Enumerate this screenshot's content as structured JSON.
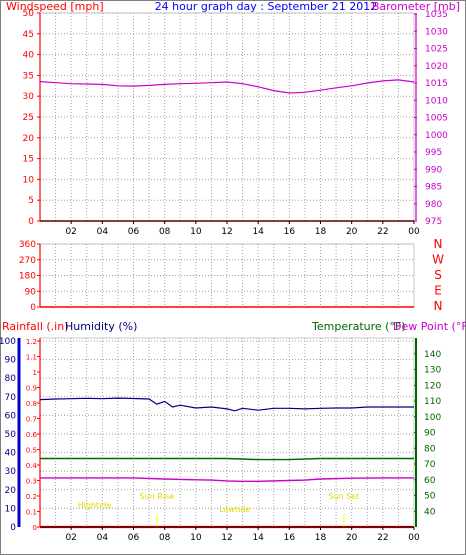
{
  "chart_data": [
    {
      "type": "line",
      "title": "24 hour graph day : September 21 2012",
      "ylabel": "Windspeed [mph]",
      "ylabel_right": "Barometer [mb]",
      "x_ticks": [
        "02",
        "04",
        "06",
        "08",
        "10",
        "12",
        "14",
        "16",
        "18",
        "20",
        "22",
        "00"
      ],
      "ylim": [
        0,
        50
      ],
      "y_ticks": [
        0,
        5,
        10,
        15,
        20,
        25,
        30,
        35,
        40,
        45,
        50
      ],
      "ylim_right": [
        975,
        1035
      ],
      "y_ticks_right": [
        975,
        980,
        985,
        990,
        995,
        1000,
        1005,
        1010,
        1015,
        1020,
        1025,
        1030,
        1035
      ],
      "grid": true,
      "series": [
        {
          "name": "Barometer [mb]",
          "color": "#cc00cc",
          "axis": "right",
          "points": [
            [
              0,
              1015.4
            ],
            [
              1,
              1015.1
            ],
            [
              2,
              1014.8
            ],
            [
              3,
              1014.7
            ],
            [
              4,
              1014.6
            ],
            [
              5,
              1014.2
            ],
            [
              6,
              1014.1
            ],
            [
              7,
              1014.3
            ],
            [
              8,
              1014.6
            ],
            [
              9,
              1014.8
            ],
            [
              10,
              1014.9
            ],
            [
              11,
              1015.1
            ],
            [
              12,
              1015.3
            ],
            [
              13,
              1014.8
            ],
            [
              14,
              1013.9
            ],
            [
              15,
              1012.8
            ],
            [
              16,
              1012.1
            ],
            [
              17,
              1012.3
            ],
            [
              18,
              1012.9
            ],
            [
              19,
              1013.6
            ],
            [
              20,
              1014.2
            ],
            [
              21,
              1015.0
            ],
            [
              22,
              1015.6
            ],
            [
              23,
              1015.9
            ],
            [
              24,
              1015.3
            ]
          ]
        },
        {
          "name": "Windspeed [mph]",
          "color": "#ff0000",
          "axis": "left",
          "points": [
            [
              0,
              0
            ],
            [
              24,
              0
            ]
          ]
        }
      ]
    },
    {
      "type": "line",
      "ylim": [
        0,
        360
      ],
      "y_ticks": [
        0,
        90,
        180,
        270,
        360
      ],
      "direction_labels": [
        "N",
        "W",
        "S",
        "E",
        "N"
      ],
      "grid": true,
      "series": [
        {
          "name": "",
          "color": "#ff0000",
          "axis": "left",
          "points": [
            [
              0,
              0
            ],
            [
              24,
              0
            ]
          ]
        }
      ]
    },
    {
      "type": "line",
      "labels": {
        "rainfall": "Rainfall (.in)",
        "humidity": "Humidity (%)",
        "temperature": "Temperature (°F)",
        "dewpoint": "Dew Point (°F)"
      },
      "x_ticks": [
        "02",
        "04",
        "06",
        "08",
        "10",
        "12",
        "14",
        "16",
        "18",
        "20",
        "22",
        "00"
      ],
      "ylim": [
        0,
        100
      ],
      "y_ticks_humidity": [
        0,
        10,
        20,
        30,
        40,
        50,
        60,
        70,
        80,
        90,
        100
      ],
      "ylim_rain": [
        0,
        1.2
      ],
      "y_ticks_rain": [
        "0",
        "0.1",
        "0.2",
        "0.3",
        "0.4",
        "0.5",
        "0.6",
        "0.7",
        "0.8",
        "0.9",
        "1",
        "1.1",
        "1.2"
      ],
      "ylim_right": [
        30,
        150
      ],
      "y_ticks_right": [
        40,
        50,
        60,
        70,
        80,
        90,
        100,
        110,
        120,
        130,
        140
      ],
      "grid": true,
      "series": [
        {
          "name": "Humidity (%)",
          "color": "#000080",
          "axis": "left",
          "points": [
            [
              0,
              68.5
            ],
            [
              1,
              68.8
            ],
            [
              2,
              69.0
            ],
            [
              3,
              69.2
            ],
            [
              4,
              69.0
            ],
            [
              5,
              69.3
            ],
            [
              6,
              69.1
            ],
            [
              7,
              68.8
            ],
            [
              7.5,
              66.0
            ],
            [
              8,
              67.5
            ],
            [
              8.5,
              64.5
            ],
            [
              9,
              65.5
            ],
            [
              10,
              64.0
            ],
            [
              11,
              64.5
            ],
            [
              12,
              63.5
            ],
            [
              12.5,
              62.5
            ],
            [
              13,
              63.8
            ],
            [
              14,
              62.8
            ],
            [
              15,
              63.8
            ],
            [
              16,
              63.8
            ],
            [
              17,
              63.5
            ],
            [
              18,
              63.8
            ],
            [
              19,
              64.0
            ],
            [
              20,
              64.0
            ],
            [
              21,
              64.5
            ],
            [
              22,
              64.5
            ],
            [
              23,
              64.5
            ],
            [
              24,
              64.5
            ]
          ]
        },
        {
          "name": "Temperature (°F)",
          "color": "#006600",
          "axis": "right",
          "points": [
            [
              0,
              73.5
            ],
            [
              2,
              73.5
            ],
            [
              4,
              73.5
            ],
            [
              6,
              73.5
            ],
            [
              8,
              73.5
            ],
            [
              10,
              73.5
            ],
            [
              12,
              73.5
            ],
            [
              14,
              72.8
            ],
            [
              16,
              72.8
            ],
            [
              18,
              73.5
            ],
            [
              20,
              73.5
            ],
            [
              22,
              73.5
            ],
            [
              24,
              73.5
            ]
          ]
        },
        {
          "name": "Dew Point (°F)",
          "color": "#cc00cc",
          "axis": "right",
          "points": [
            [
              0,
              61.2
            ],
            [
              2,
              61.2
            ],
            [
              4,
              61.2
            ],
            [
              6,
              61.2
            ],
            [
              8,
              60.5
            ],
            [
              10,
              60.0
            ],
            [
              11,
              59.8
            ],
            [
              12,
              59.3
            ],
            [
              13,
              59.0
            ],
            [
              14,
              59.0
            ],
            [
              16,
              59.5
            ],
            [
              17,
              59.8
            ],
            [
              18,
              60.5
            ],
            [
              20,
              61.0
            ],
            [
              22,
              61.2
            ],
            [
              24,
              61.2
            ]
          ]
        },
        {
          "name": "Rainfall (.in)",
          "color": "#ff0000",
          "axis": "left",
          "points": [
            [
              0,
              0
            ],
            [
              24,
              0
            ]
          ]
        }
      ],
      "annotations": [
        {
          "text": "Sun Rise",
          "hour": 7.5,
          "color": "#ffff00"
        },
        {
          "text": "Sun Set",
          "hour": 19.5,
          "color": "#ffff00"
        }
      ],
      "tides": [
        {
          "text": "Hightide",
          "hour": 3.5,
          "color": "#ffff00"
        },
        {
          "text": "Lowtide",
          "hour": 12.5,
          "color": "#ffff00"
        }
      ]
    }
  ]
}
